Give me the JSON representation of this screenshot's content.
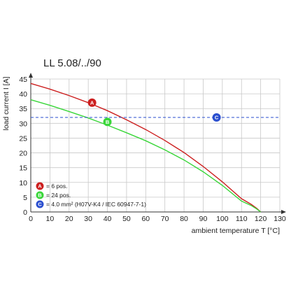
{
  "chart_data": {
    "type": "line",
    "title": "LL 5.08/../90",
    "xlabel": "ambient temperature T [°C]",
    "ylabel": "load current I [A]",
    "xlim": [
      0,
      130
    ],
    "ylim": [
      0,
      45
    ],
    "xticks": [
      "0",
      "10",
      "20",
      "30",
      "40",
      "50",
      "60",
      "70",
      "80",
      "90",
      "100",
      "110",
      "120",
      "130"
    ],
    "yticks": [
      "0",
      "5",
      "10",
      "15",
      "20",
      "25",
      "30",
      "35",
      "40",
      "45"
    ],
    "grid": true,
    "series": [
      {
        "label": "A",
        "color": "#cc1f1f",
        "points": [
          [
            0,
            43.5
          ],
          [
            10,
            41.6
          ],
          [
            20,
            39.4
          ],
          [
            30,
            37.0
          ],
          [
            40,
            34.3
          ],
          [
            50,
            31.2
          ],
          [
            60,
            27.9
          ],
          [
            70,
            24.2
          ],
          [
            80,
            20.1
          ],
          [
            90,
            15.4
          ],
          [
            100,
            10.2
          ],
          [
            110,
            4.5
          ],
          [
            115,
            2.6
          ],
          [
            118,
            1.2
          ],
          [
            120,
            0.0
          ]
        ]
      },
      {
        "label": "B",
        "color": "#39d639",
        "points": [
          [
            0,
            38.0
          ],
          [
            10,
            36.1
          ],
          [
            20,
            34.0
          ],
          [
            30,
            31.8
          ],
          [
            40,
            29.4
          ],
          [
            50,
            26.8
          ],
          [
            60,
            24.1
          ],
          [
            70,
            21.0
          ],
          [
            80,
            17.6
          ],
          [
            90,
            13.6
          ],
          [
            100,
            9.0
          ],
          [
            110,
            3.7
          ],
          [
            115,
            2.2
          ],
          [
            118,
            1.0
          ],
          [
            120,
            0.0
          ]
        ]
      },
      {
        "label": "C",
        "color": "#2b4fcf",
        "dashed": true,
        "points": [
          [
            0,
            32
          ],
          [
            130,
            32
          ]
        ]
      }
    ],
    "markers": [
      {
        "label": "A",
        "x": 32,
        "y": 37,
        "color": "#cc1f1f"
      },
      {
        "label": "B",
        "x": 40,
        "y": 30.5,
        "color": "#39d639"
      },
      {
        "label": "C",
        "x": 97,
        "y": 32,
        "color": "#2b4fcf"
      }
    ],
    "legend": {
      "placement": "bottom-left",
      "entries": [
        {
          "label": "A",
          "color": "#cc1f1f",
          "text": "= 6 pos."
        },
        {
          "label": "B",
          "color": "#39d639",
          "text": "= 24 pos."
        },
        {
          "label": "C",
          "color": "#2b4fcf",
          "text": "= 4.0 mm² (H07V-K4 / IEC 60947-7-1)"
        }
      ]
    }
  }
}
